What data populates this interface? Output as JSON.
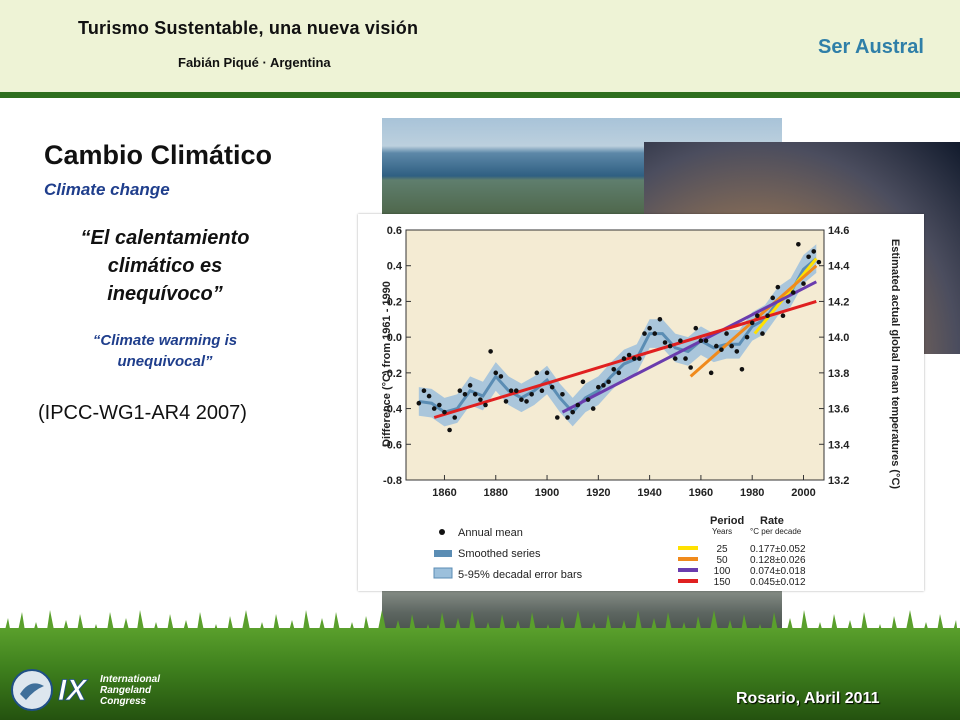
{
  "header": {
    "title": "Turismo Sustentable, una nueva visión",
    "subtitle": "Fabián Piqué · Argentina",
    "brand": "Ser Austral"
  },
  "slide": {
    "title": "Cambio Climático",
    "subtitle": "Climate change",
    "quote_es_1": "“El calentamiento",
    "quote_es_2": "climático es",
    "quote_es_3": "inequívoco”",
    "quote_en_1": "“Climate warming is",
    "quote_en_2": "unequivocal”",
    "source": "(IPCC-WG1-AR4 2007)"
  },
  "logo": {
    "numeral": "IX",
    "line1": "International",
    "line2": "Rangeland",
    "line3": "Congress"
  },
  "footer": {
    "text": "Rosario, Abril 2011"
  },
  "colors": {
    "header_bg": "#eef3d6",
    "header_line": "#2e6e1e",
    "brand": "#2f7fa8",
    "accent_text": "#1f3e8c"
  },
  "chart_data": {
    "type": "line",
    "ylabel": "Difference (°C) from 1961 - 1990",
    "y2label": "Estimated actual global mean temperatures (°C)",
    "xlim": [
      1845,
      2008
    ],
    "ylim": [
      -0.8,
      0.6
    ],
    "y2lim": [
      13.2,
      14.6
    ],
    "x_ticks": [
      1860,
      1880,
      1900,
      1920,
      1940,
      1960,
      1980,
      2000
    ],
    "y_ticks": [
      -0.8,
      -0.6,
      -0.4,
      -0.2,
      0.0,
      0.2,
      0.4,
      0.6
    ],
    "y_tick_labels": [
      "-0.8",
      "-0.6",
      "-0.4",
      "-0.2",
      "0.0",
      "0.2",
      "0.4",
      "0.6"
    ],
    "y2_ticks": [
      13.2,
      13.4,
      13.6,
      13.8,
      14.0,
      14.2,
      14.4,
      14.6
    ],
    "y2_tick_labels": [
      "13.2",
      "13.4",
      "13.6",
      "13.8",
      "14.0",
      "14.2",
      "14.4",
      "14.6"
    ],
    "annual_x": [
      1850,
      1852,
      1854,
      1856,
      1858,
      1860,
      1862,
      1864,
      1866,
      1868,
      1870,
      1872,
      1874,
      1876,
      1878,
      1880,
      1882,
      1884,
      1886,
      1888,
      1890,
      1892,
      1894,
      1896,
      1898,
      1900,
      1902,
      1904,
      1906,
      1908,
      1910,
      1912,
      1914,
      1916,
      1918,
      1920,
      1922,
      1924,
      1926,
      1928,
      1930,
      1932,
      1934,
      1936,
      1938,
      1940,
      1942,
      1944,
      1946,
      1948,
      1950,
      1952,
      1954,
      1956,
      1958,
      1960,
      1962,
      1964,
      1966,
      1968,
      1970,
      1972,
      1974,
      1976,
      1978,
      1980,
      1982,
      1984,
      1986,
      1988,
      1990,
      1992,
      1994,
      1996,
      1998,
      2000,
      2002,
      2004,
      2006
    ],
    "annual_values": [
      -0.37,
      -0.3,
      -0.33,
      -0.4,
      -0.38,
      -0.42,
      -0.52,
      -0.45,
      -0.3,
      -0.32,
      -0.27,
      -0.32,
      -0.35,
      -0.38,
      -0.08,
      -0.2,
      -0.22,
      -0.36,
      -0.3,
      -0.3,
      -0.35,
      -0.36,
      -0.32,
      -0.2,
      -0.3,
      -0.2,
      -0.28,
      -0.45,
      -0.32,
      -0.45,
      -0.42,
      -0.38,
      -0.25,
      -0.35,
      -0.4,
      -0.28,
      -0.27,
      -0.25,
      -0.18,
      -0.2,
      -0.12,
      -0.1,
      -0.12,
      -0.12,
      0.02,
      0.05,
      0.02,
      0.1,
      -0.03,
      -0.05,
      -0.12,
      -0.02,
      -0.12,
      -0.17,
      0.05,
      -0.02,
      -0.02,
      -0.2,
      -0.05,
      -0.07,
      0.02,
      -0.05,
      -0.08,
      -0.18,
      0.0,
      0.08,
      0.12,
      0.02,
      0.12,
      0.22,
      0.28,
      0.12,
      0.2,
      0.25,
      0.52,
      0.3,
      0.45,
      0.48,
      0.42
    ],
    "smoothed_x": [
      1850,
      1855,
      1860,
      1865,
      1870,
      1875,
      1880,
      1885,
      1890,
      1895,
      1900,
      1905,
      1910,
      1915,
      1920,
      1925,
      1930,
      1935,
      1940,
      1945,
      1950,
      1955,
      1960,
      1965,
      1970,
      1975,
      1980,
      1985,
      1990,
      1995,
      2000,
      2005
    ],
    "smoothed_values": [
      -0.36,
      -0.37,
      -0.42,
      -0.4,
      -0.3,
      -0.33,
      -0.22,
      -0.3,
      -0.34,
      -0.3,
      -0.24,
      -0.34,
      -0.42,
      -0.34,
      -0.3,
      -0.22,
      -0.15,
      -0.12,
      0.02,
      0.02,
      -0.06,
      -0.08,
      -0.02,
      -0.06,
      -0.04,
      -0.04,
      0.06,
      0.1,
      0.2,
      0.25,
      0.38,
      0.44
    ],
    "error_band": 0.08,
    "trends": [
      {
        "period": "25",
        "rate": "0.177±0.052",
        "color": "#ffe100",
        "x": [
          1981,
          2005
        ],
        "y": [
          0.02,
          0.44
        ]
      },
      {
        "period": "50",
        "rate": "0.128±0.026",
        "color": "#f08a1c",
        "x": [
          1956,
          2005
        ],
        "y": [
          -0.22,
          0.4
        ]
      },
      {
        "period": "100",
        "rate": "0.074±0.018",
        "color": "#6a3cae",
        "x": [
          1906,
          2005
        ],
        "y": [
          -0.42,
          0.31
        ]
      },
      {
        "period": "150",
        "rate": "0.045±0.012",
        "color": "#e02020",
        "x": [
          1856,
          2005
        ],
        "y": [
          -0.45,
          0.2
        ]
      }
    ],
    "legend": {
      "annual": "Annual mean",
      "smoothed": "Smoothed series",
      "error": "5-95% decadal error bars",
      "period_header": "Period",
      "period_sub": "Years",
      "rate_header": "Rate",
      "rate_sub": "°C per decade"
    }
  }
}
